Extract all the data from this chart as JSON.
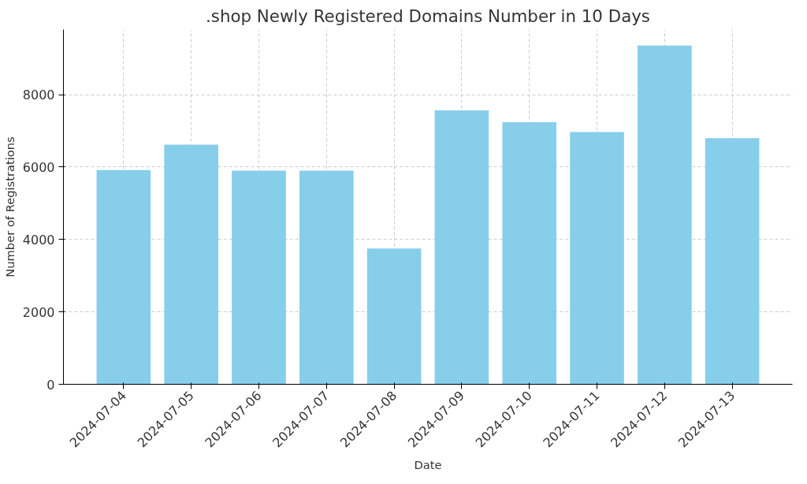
{
  "chart_data": {
    "type": "bar",
    "title": ".shop Newly Registered Domains Number in 10 Days",
    "xlabel": "Date",
    "ylabel": "Number of Registrations",
    "categories": [
      "2024-07-04",
      "2024-07-05",
      "2024-07-06",
      "2024-07-07",
      "2024-07-08",
      "2024-07-09",
      "2024-07-10",
      "2024-07-11",
      "2024-07-12",
      "2024-07-13"
    ],
    "values": [
      5920,
      6620,
      5900,
      5900,
      3750,
      7570,
      7240,
      6970,
      9360,
      6800
    ],
    "color": "#87ceeb",
    "ylim": [
      0,
      9800
    ],
    "yticks": [
      0,
      2000,
      4000,
      6000,
      8000
    ],
    "grid": true
  }
}
